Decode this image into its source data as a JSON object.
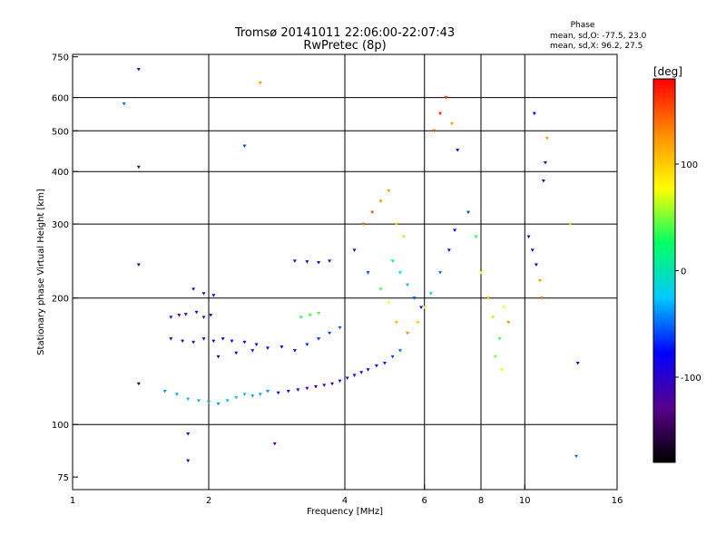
{
  "chart_data": {
    "type": "scatter",
    "title": "Tromsø 20141011 22:06:00-22:07:43",
    "subtitle": "RwPretec (8p)",
    "xlabel": "Frequency [MHz]",
    "ylabel": "Stationary phase Virtual Height [km]",
    "x_scale": "log",
    "y_scale": "log",
    "xlim": [
      1,
      16
    ],
    "ylim": [
      70,
      760
    ],
    "x_ticks": [
      {
        "value": 1,
        "label": "1"
      },
      {
        "value": 2,
        "label": "2"
      },
      {
        "value": 4,
        "label": "4"
      },
      {
        "value": 6,
        "label": "6"
      },
      {
        "value": 8,
        "label": "8"
      },
      {
        "value": 10,
        "label": "10"
      },
      {
        "value": 16,
        "label": "16"
      }
    ],
    "y_ticks": [
      {
        "value": 75,
        "label": "75"
      },
      {
        "value": 100,
        "label": "100"
      },
      {
        "value": 200,
        "label": "200"
      },
      {
        "value": 300,
        "label": "300"
      },
      {
        "value": 400,
        "label": "400"
      },
      {
        "value": 500,
        "label": "500"
      },
      {
        "value": 600,
        "label": "600"
      },
      {
        "value": 750,
        "label": "750"
      }
    ],
    "grid_x": [
      2,
      4,
      6,
      8,
      10
    ],
    "grid_y": [
      100,
      200,
      300,
      400,
      500,
      600
    ],
    "grid": true,
    "stats": {
      "heading": "Phase",
      "line1": "mean, sd,O: -77.5, 23.0",
      "line2": "mean, sd,X:  96.2, 27.5"
    },
    "colorbar": {
      "label": "[deg]",
      "ticks": [
        {
          "value": 100,
          "label": "100"
        },
        {
          "value": 0,
          "label": "0"
        },
        {
          "value": -100,
          "label": "-100"
        }
      ],
      "range": [
        -180,
        180
      ],
      "colors": [
        "#000000",
        "#5a008c",
        "#0000ff",
        "#00c8ff",
        "#00ff64",
        "#ffff00",
        "#ff8c00",
        "#ff0000"
      ]
    },
    "point_value_unit": "deg",
    "series": [
      {
        "points": [
          [
            1.65,
            180,
            -115
          ],
          [
            1.72,
            182,
            -120
          ],
          [
            1.78,
            183,
            -118
          ],
          [
            1.88,
            185,
            -110
          ],
          [
            1.95,
            180,
            -112
          ],
          [
            2.02,
            182,
            -100
          ],
          [
            1.85,
            210,
            -110
          ],
          [
            1.95,
            205,
            -105
          ],
          [
            2.05,
            203,
            -95
          ],
          [
            1.65,
            160,
            -115
          ],
          [
            1.75,
            158,
            -110
          ],
          [
            1.85,
            157,
            -105
          ],
          [
            1.95,
            160,
            -100
          ],
          [
            2.05,
            158,
            -95
          ],
          [
            2.15,
            160,
            -90
          ],
          [
            2.25,
            158,
            -85
          ],
          [
            2.4,
            157,
            -80
          ],
          [
            2.55,
            155,
            -82
          ],
          [
            2.1,
            145,
            -80
          ],
          [
            2.3,
            148,
            -75
          ],
          [
            2.5,
            150,
            -70
          ],
          [
            2.7,
            152,
            -78
          ],
          [
            2.9,
            153,
            -80
          ],
          [
            3.1,
            150,
            -75
          ],
          [
            3.3,
            155,
            -70
          ],
          [
            3.5,
            160,
            -65
          ],
          [
            3.7,
            165,
            -60
          ],
          [
            3.9,
            170,
            -55
          ],
          [
            3.2,
            180,
            30
          ],
          [
            3.35,
            182,
            35
          ],
          [
            3.5,
            184,
            40
          ],
          [
            3.1,
            245,
            -100
          ],
          [
            3.3,
            244,
            -105
          ],
          [
            3.5,
            243,
            -110
          ],
          [
            3.7,
            245,
            -108
          ],
          [
            1.6,
            120,
            -40
          ],
          [
            1.7,
            118,
            -35
          ],
          [
            1.8,
            115,
            -30
          ],
          [
            1.9,
            114,
            -32
          ],
          [
            2.0,
            113,
            -35
          ],
          [
            2.1,
            112,
            -38
          ],
          [
            2.2,
            114,
            -30
          ],
          [
            2.3,
            116,
            -28
          ],
          [
            2.4,
            118,
            -30
          ],
          [
            2.5,
            117,
            -34
          ],
          [
            2.6,
            118,
            -35
          ],
          [
            2.7,
            120,
            -40
          ],
          [
            2.85,
            119,
            -90
          ],
          [
            3.0,
            120,
            -95
          ],
          [
            3.15,
            121,
            -100
          ],
          [
            3.3,
            122,
            -105
          ],
          [
            3.45,
            123,
            -110
          ],
          [
            3.6,
            124,
            -115
          ],
          [
            3.75,
            125,
            -112
          ],
          [
            3.9,
            127,
            -108
          ],
          [
            4.05,
            129,
            -100
          ],
          [
            4.2,
            131,
            -95
          ],
          [
            4.35,
            133,
            -90
          ],
          [
            4.5,
            135,
            -85
          ],
          [
            4.7,
            138,
            -80
          ],
          [
            4.9,
            140,
            -70
          ],
          [
            5.1,
            145,
            -60
          ],
          [
            5.3,
            150,
            -50
          ],
          [
            4.4,
            300,
            140
          ],
          [
            4.6,
            320,
            150
          ],
          [
            4.8,
            340,
            130
          ],
          [
            5.0,
            360,
            120
          ],
          [
            5.2,
            300,
            90
          ],
          [
            5.4,
            280,
            60
          ],
          [
            5.1,
            245,
            20
          ],
          [
            5.3,
            230,
            0
          ],
          [
            5.5,
            215,
            -30
          ],
          [
            5.7,
            200,
            -60
          ],
          [
            5.9,
            190,
            -80
          ],
          [
            4.2,
            260,
            -90
          ],
          [
            4.5,
            230,
            -60
          ],
          [
            4.8,
            210,
            40
          ],
          [
            5.0,
            195,
            80
          ],
          [
            5.2,
            175,
            110
          ],
          [
            5.5,
            165,
            130
          ],
          [
            5.8,
            175,
            100
          ],
          [
            6.0,
            190,
            70
          ],
          [
            6.2,
            205,
            -20
          ],
          [
            6.5,
            230,
            -50
          ],
          [
            6.8,
            260,
            -80
          ],
          [
            7.0,
            290,
            -100
          ],
          [
            6.3,
            500,
            150
          ],
          [
            6.5,
            550,
            170
          ],
          [
            6.7,
            600,
            160
          ],
          [
            6.9,
            520,
            120
          ],
          [
            7.1,
            450,
            -90
          ],
          [
            7.5,
            320,
            -60
          ],
          [
            7.8,
            280,
            30
          ],
          [
            8.0,
            230,
            70
          ],
          [
            8.3,
            200,
            110
          ],
          [
            8.5,
            180,
            60
          ],
          [
            8.8,
            160,
            40
          ],
          [
            9.0,
            190,
            80
          ],
          [
            9.2,
            175,
            130
          ],
          [
            8.6,
            145,
            50
          ],
          [
            8.9,
            135,
            70
          ],
          [
            10.2,
            280,
            -100
          ],
          [
            10.4,
            260,
            -90
          ],
          [
            10.6,
            240,
            -80
          ],
          [
            10.8,
            220,
            120
          ],
          [
            10.9,
            200,
            140
          ],
          [
            11.0,
            380,
            -110
          ],
          [
            11.1,
            420,
            -100
          ],
          [
            10.5,
            550,
            -80
          ],
          [
            11.2,
            480,
            120
          ],
          [
            1.3,
            580,
            -50
          ],
          [
            1.4,
            700,
            -95
          ],
          [
            1.4,
            410,
            -140
          ],
          [
            1.4,
            240,
            -140
          ],
          [
            1.4,
            125,
            -150
          ],
          [
            1.8,
            95,
            -100
          ],
          [
            1.8,
            82,
            -100
          ],
          [
            2.4,
            460,
            -60
          ],
          [
            2.6,
            650,
            120
          ],
          [
            2.8,
            90,
            -120
          ],
          [
            13.0,
            84,
            -50
          ],
          [
            12.6,
            300,
            60
          ],
          [
            13.1,
            140,
            -90
          ]
        ]
      }
    ]
  }
}
